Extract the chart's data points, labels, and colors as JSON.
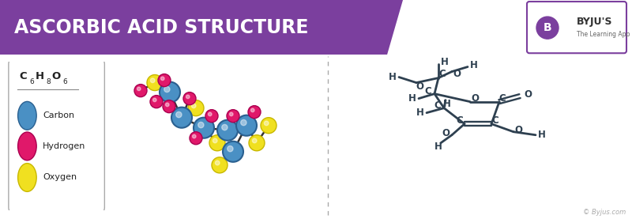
{
  "title": "ASCORBIC ACID STRUCTURE",
  "title_bg": "#7B3F9E",
  "title_color": "white",
  "title_fontsize": 17,
  "bg_color": "white",
  "carbon_color": "#4A90C4",
  "hydrogen_color": "#E0186A",
  "oxygen_color": "#F0E020",
  "bond_color": "#333333",
  "struct_color": "#2E4050",
  "legend_items": [
    {
      "label": "Carbon",
      "color": "#4A90C4"
    },
    {
      "label": "Hydrogen",
      "color": "#E0186A"
    },
    {
      "label": "Oxygen",
      "color": "#F0E020"
    }
  ],
  "byju_text": "© Byjus.com",
  "carbon_r": 13,
  "oxygen_r": 10,
  "hydrogen_r": 8
}
